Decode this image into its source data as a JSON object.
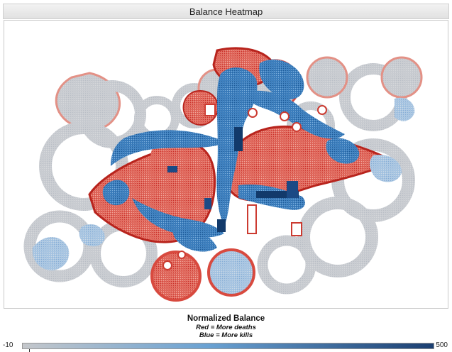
{
  "window": {
    "title": "Balance Heatmap"
  },
  "legend": {
    "title": "Normalized Balance",
    "line_red": "Red = More deaths",
    "line_blue": "Blue = More kills",
    "min_label": "-10",
    "max_label": "500"
  },
  "colors": {
    "death_red": "#d73027",
    "neutral_gray": "#c8ccd0",
    "kill_blue": "#2c6fb3",
    "kill_blue_dark": "#123a6b",
    "colorbar_start": "#c4c7cb",
    "colorbar_mid": "#6aa2d3",
    "colorbar_end": "#1b3f71"
  },
  "icons": {
    "colorbar_marker": "tick-icon"
  }
}
